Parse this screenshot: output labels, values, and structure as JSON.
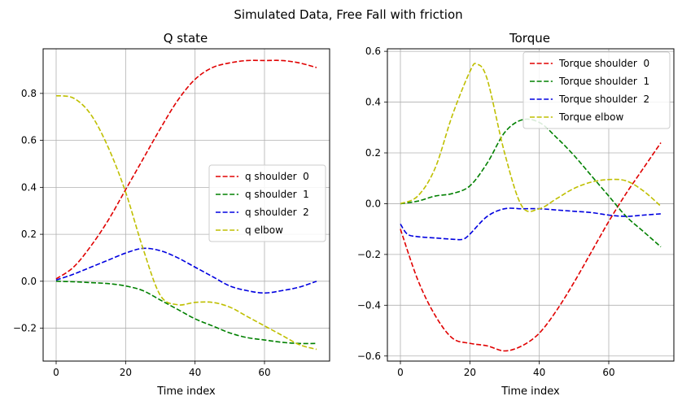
{
  "figure": {
    "suptitle": "Simulated Data, Free Fall with friction"
  },
  "colors": {
    "red": "#e00000",
    "green": "#008000",
    "blue": "#0000e0",
    "yellow": "#bfbf00",
    "grid": "#b0b0b0"
  },
  "chart_data": [
    {
      "type": "line",
      "title": "Q state",
      "xlabel": "Time index",
      "ylabel": "",
      "xlim": [
        -3.75,
        78.75
      ],
      "ylim": [
        -0.34,
        0.99
      ],
      "xticks": [
        0,
        20,
        40,
        60
      ],
      "yticks": [
        -0.2,
        0.0,
        0.2,
        0.4,
        0.6,
        0.8
      ],
      "tick_labels_x": [
        "0",
        "20",
        "40",
        "60"
      ],
      "tick_labels_y": [
        "−0.2",
        "0.0",
        "0.2",
        "0.4",
        "0.6",
        "0.8"
      ],
      "grid": true,
      "legend_position": "center-right",
      "series": [
        {
          "name": "q shoulder  0",
          "color": "#e00000",
          "style": "dashed",
          "x": [
            0,
            5,
            10,
            15,
            20,
            25,
            30,
            35,
            40,
            45,
            50,
            55,
            60,
            65,
            70,
            75
          ],
          "y": [
            0.01,
            0.06,
            0.15,
            0.26,
            0.39,
            0.52,
            0.65,
            0.77,
            0.86,
            0.91,
            0.93,
            0.94,
            0.94,
            0.94,
            0.93,
            0.91
          ]
        },
        {
          "name": "q shoulder  1",
          "color": "#008000",
          "style": "dashed",
          "x": [
            0,
            5,
            10,
            15,
            20,
            25,
            30,
            35,
            40,
            45,
            50,
            55,
            60,
            65,
            70,
            75
          ],
          "y": [
            0.0,
            -0.002,
            -0.006,
            -0.01,
            -0.02,
            -0.04,
            -0.08,
            -0.12,
            -0.16,
            -0.19,
            -0.22,
            -0.24,
            -0.25,
            -0.26,
            -0.265,
            -0.265
          ]
        },
        {
          "name": "q shoulder  2",
          "color": "#0000e0",
          "style": "dashed",
          "x": [
            0,
            5,
            10,
            15,
            20,
            25,
            30,
            35,
            40,
            45,
            50,
            55,
            60,
            65,
            70,
            75
          ],
          "y": [
            0.005,
            0.03,
            0.06,
            0.09,
            0.12,
            0.14,
            0.13,
            0.1,
            0.06,
            0.02,
            -0.02,
            -0.04,
            -0.05,
            -0.04,
            -0.025,
            0.0
          ]
        },
        {
          "name": "q elbow",
          "color": "#bfbf00",
          "style": "dashed",
          "x": [
            0,
            5,
            10,
            15,
            20,
            25,
            30,
            35,
            40,
            45,
            50,
            55,
            60,
            65,
            70,
            75
          ],
          "y": [
            0.79,
            0.78,
            0.71,
            0.57,
            0.38,
            0.14,
            -0.06,
            -0.1,
            -0.09,
            -0.09,
            -0.11,
            -0.15,
            -0.19,
            -0.23,
            -0.27,
            -0.29
          ]
        }
      ]
    },
    {
      "type": "line",
      "title": "Torque",
      "xlabel": "Time index",
      "ylabel": "",
      "xlim": [
        -3.75,
        78.75
      ],
      "ylim": [
        -0.62,
        0.61
      ],
      "xticks": [
        0,
        20,
        40,
        60
      ],
      "yticks": [
        -0.6,
        -0.4,
        -0.2,
        0.0,
        0.2,
        0.4,
        0.6
      ],
      "tick_labels_x": [
        "0",
        "20",
        "40",
        "60"
      ],
      "tick_labels_y": [
        "−0.6",
        "−0.4",
        "−0.2",
        "0.0",
        "0.2",
        "0.4",
        "0.6"
      ],
      "grid": true,
      "legend_position": "top-right",
      "series": [
        {
          "name": "Torque shoulder  0",
          "color": "#e00000",
          "style": "dashed",
          "x": [
            0,
            5,
            10,
            15,
            20,
            25,
            30,
            35,
            40,
            45,
            50,
            55,
            60,
            65,
            70,
            75
          ],
          "y": [
            -0.1,
            -0.3,
            -0.44,
            -0.53,
            -0.55,
            -0.56,
            -0.58,
            -0.56,
            -0.51,
            -0.42,
            -0.31,
            -0.19,
            -0.07,
            0.04,
            0.14,
            0.24
          ]
        },
        {
          "name": "Torque shoulder  1",
          "color": "#008000",
          "style": "dashed",
          "x": [
            0,
            5,
            10,
            15,
            20,
            25,
            30,
            35,
            40,
            45,
            50,
            55,
            60,
            65,
            70,
            75
          ],
          "y": [
            0.0,
            0.01,
            0.03,
            0.04,
            0.07,
            0.16,
            0.28,
            0.33,
            0.32,
            0.26,
            0.19,
            0.11,
            0.03,
            -0.05,
            -0.11,
            -0.17
          ]
        },
        {
          "name": "Torque shoulder  2",
          "color": "#0000e0",
          "style": "dashed",
          "x": [
            0,
            2,
            5,
            10,
            15,
            18,
            20,
            25,
            30,
            35,
            40,
            45,
            50,
            55,
            60,
            65,
            70,
            75
          ],
          "y": [
            -0.08,
            -0.12,
            -0.13,
            -0.135,
            -0.14,
            -0.14,
            -0.12,
            -0.05,
            -0.02,
            -0.02,
            -0.02,
            -0.025,
            -0.03,
            -0.035,
            -0.045,
            -0.05,
            -0.045,
            -0.04
          ]
        },
        {
          "name": "Torque elbow",
          "color": "#bfbf00",
          "style": "dashed",
          "x": [
            0,
            5,
            10,
            15,
            20,
            22,
            25,
            30,
            35,
            40,
            45,
            50,
            55,
            60,
            65,
            70,
            75
          ],
          "y": [
            0.0,
            0.03,
            0.14,
            0.35,
            0.52,
            0.55,
            0.49,
            0.2,
            -0.01,
            -0.02,
            0.02,
            0.06,
            0.085,
            0.095,
            0.09,
            0.05,
            -0.01
          ]
        }
      ]
    }
  ]
}
